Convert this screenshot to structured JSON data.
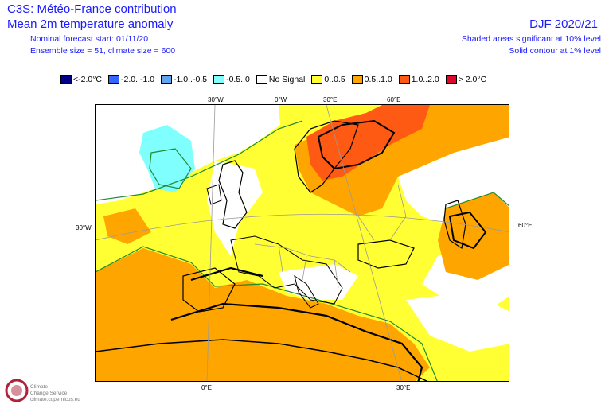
{
  "header": {
    "title": "C3S: Météo-France contribution",
    "subtitle": "Mean 2m temperature anomaly",
    "nominal_start": "Nominal forecast start: 01/11/20",
    "ensemble": "Ensemble size = 51, climate size = 600",
    "season": "DJF 2020/21",
    "shaded_note": "Shaded areas significant at 10% level",
    "contour_note": "Solid contour at 1% level"
  },
  "legend": [
    {
      "label": "<-2.0°C",
      "color": "#00008b"
    },
    {
      "label": "-2.0..-1.0",
      "color": "#3366ff"
    },
    {
      "label": "-1.0..-0.5",
      "color": "#5fa5ef"
    },
    {
      "label": "-0.5..0",
      "color": "#80ffff"
    },
    {
      "label": "No Signal",
      "color": "#ffffff"
    },
    {
      "label": "0..0.5",
      "color": "#ffff33"
    },
    {
      "label": "0.5..1.0",
      "color": "#ffa500"
    },
    {
      "label": "1.0..2.0",
      "color": "#ff5a14"
    },
    {
      "label": "> 2.0°C",
      "color": "#dc0a28"
    }
  ],
  "map": {
    "grid_labels": {
      "top_30w": "30°W",
      "top_0w": "0°W",
      "top_30e": "30°E",
      "top_60e": "60°E",
      "left_30w": "30°W",
      "right_60e": "60°E",
      "bottom_0e": "0°E",
      "bottom_30e": "30°E"
    }
  },
  "logo": {
    "line1": "Climate",
    "line2": "Change Service",
    "line3": "climate.copernicus.eu"
  }
}
